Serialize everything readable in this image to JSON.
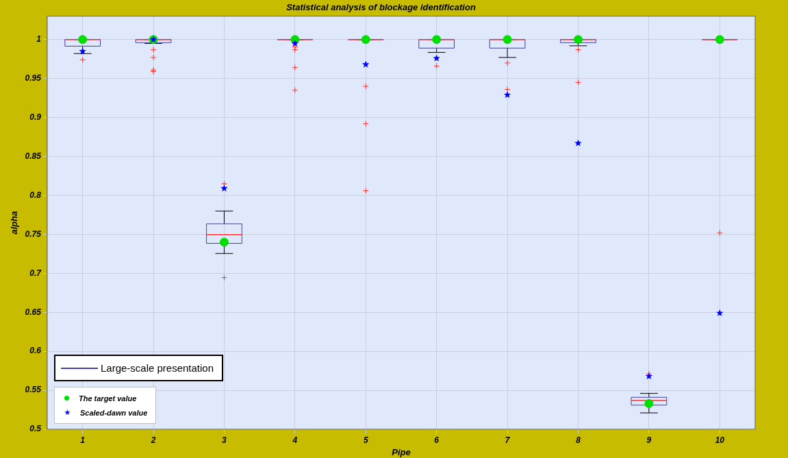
{
  "chart_data": {
    "type": "box",
    "title": "Statistical analysis of blockage identification",
    "xlabel": "Pipe",
    "ylabel": "alpha",
    "categories": [
      "1",
      "2",
      "3",
      "4",
      "5",
      "6",
      "7",
      "8",
      "9",
      "10"
    ],
    "ylim": [
      0.5,
      1.03
    ],
    "yticks": [
      0.5,
      0.55,
      0.6,
      0.65,
      0.7,
      0.75,
      0.8,
      0.85,
      0.9,
      0.95,
      1
    ],
    "grid": true,
    "legend": "bottom left",
    "series": [
      {
        "name": "Large-scale presentation",
        "color": "#4040a0",
        "boxes": [
          {
            "low": 0.982,
            "q1": 0.9915,
            "median": 1,
            "q3": 1,
            "high": 1,
            "outliers": [
              0.974
            ]
          },
          {
            "low": 0.995,
            "q1": 0.996,
            "median": 1,
            "q3": 1,
            "high": 1,
            "outliers": [
              0.987,
              0.977,
              0.961,
              0.959
            ]
          },
          {
            "low": 0.7255,
            "q1": 0.7385,
            "median": 0.7497,
            "q3": 0.7636,
            "high": 0.78,
            "outliers": [
              0.815,
              0.6945
            ]
          },
          {
            "low": 1,
            "q1": 1,
            "median": 1,
            "q3": 1,
            "high": 1,
            "outliers": [
              0.9905,
              0.987,
              0.964,
              0.935
            ]
          },
          {
            "low": 1,
            "q1": 1,
            "median": 1,
            "q3": 1,
            "high": 1,
            "outliers": [
              0.94,
              0.892,
              0.806
            ]
          },
          {
            "low": 0.9835,
            "q1": 0.989,
            "median": 1,
            "q3": 1,
            "high": 1,
            "outliers": [
              0.966
            ]
          },
          {
            "low": 0.977,
            "q1": 0.989,
            "median": 1,
            "q3": 1,
            "high": 1,
            "outliers": [
              0.97,
              0.936
            ]
          },
          {
            "low": 0.992,
            "q1": 0.996,
            "median": 1,
            "q3": 1,
            "high": 1,
            "outliers": [
              0.987,
              0.945
            ]
          },
          {
            "low": 0.521,
            "q1": 0.531,
            "median": 0.537,
            "q3": 0.541,
            "high": 0.546,
            "outliers": [
              0.571
            ]
          },
          {
            "low": 1,
            "q1": 1,
            "median": 1,
            "q3": 1,
            "high": 1,
            "outliers": [
              0.752
            ]
          }
        ]
      },
      {
        "name": "The target value",
        "type": "scatter",
        "marker": "circle",
        "color": "#00e000",
        "x": [
          "1",
          "2",
          "3",
          "4",
          "5",
          "6",
          "7",
          "8",
          "9",
          "10"
        ],
        "values": [
          1,
          1,
          0.74,
          1,
          1,
          1,
          1,
          1,
          0.533,
          1
        ]
      },
      {
        "name": "Scaled-dawn value",
        "type": "scatter",
        "marker": "star",
        "color": "#0000ff",
        "x": [
          "1",
          "2",
          "3",
          "4",
          "5",
          "6",
          "7",
          "8",
          "9",
          "10"
        ],
        "values": [
          0.985,
          1,
          0.809,
          0.995,
          0.968,
          0.976,
          0.929,
          0.867,
          0.568,
          0.649
        ]
      }
    ]
  }
}
